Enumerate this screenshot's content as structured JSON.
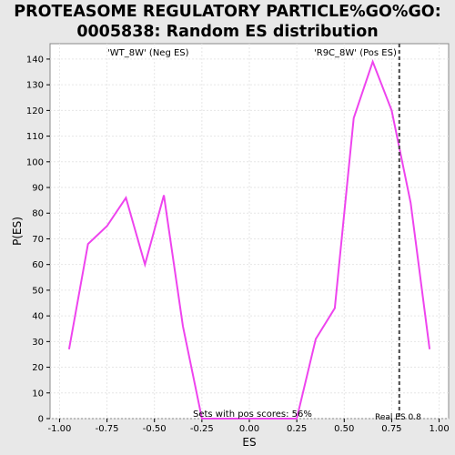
{
  "title_lines": [
    "PROTEASOME REGULATORY PARTICLE%GO%GO:",
    "0005838: Random ES distribution"
  ],
  "chart_data": {
    "type": "line",
    "title": "PROTEASOME REGULATORY PARTICLE%GO%GO:0005838: Random ES distribution",
    "xlabel": "ES",
    "ylabel": "P(ES)",
    "xlim": [
      -1.05,
      1.05
    ],
    "ylim": [
      0,
      146
    ],
    "x_ticks": [
      "-1.00",
      "-0.75",
      "-0.50",
      "-0.25",
      "0.00",
      "0.25",
      "0.50",
      "0.75",
      "1.00"
    ],
    "x_tick_values": [
      -1.0,
      -0.75,
      -0.5,
      -0.25,
      0.0,
      0.25,
      0.5,
      0.75,
      1.0
    ],
    "y_ticks": [
      0,
      10,
      20,
      30,
      40,
      50,
      60,
      70,
      80,
      90,
      100,
      110,
      120,
      130,
      140
    ],
    "grid": true,
    "series": [
      {
        "color": "#ee44ee",
        "x": [
          -0.95,
          -0.85,
          -0.75,
          -0.65,
          -0.55,
          -0.45,
          -0.35,
          -0.25,
          -0.15,
          -0.05,
          0.05,
          0.15,
          0.25,
          0.35,
          0.45,
          0.55,
          0.65,
          0.75,
          0.85,
          0.95
        ],
        "y": [
          27,
          68,
          75,
          86,
          60,
          87,
          36,
          0,
          0,
          0,
          0,
          0,
          0,
          31,
          43,
          117,
          139,
          120,
          84,
          27
        ]
      }
    ],
    "real_es": 0.79,
    "annotations": {
      "neg_label": "'WT_8W' (Neg ES)",
      "pos_label": "'R9C_8W' (Pos ES)",
      "pos_scores": "Sets with pos scores: 56%",
      "real_es_label": "Real ES 0.8"
    },
    "colors": {
      "neg_label": "#4444ee",
      "pos_label": "#ee4444",
      "line": "#ee44ee",
      "real_es_line": "#444444"
    }
  }
}
